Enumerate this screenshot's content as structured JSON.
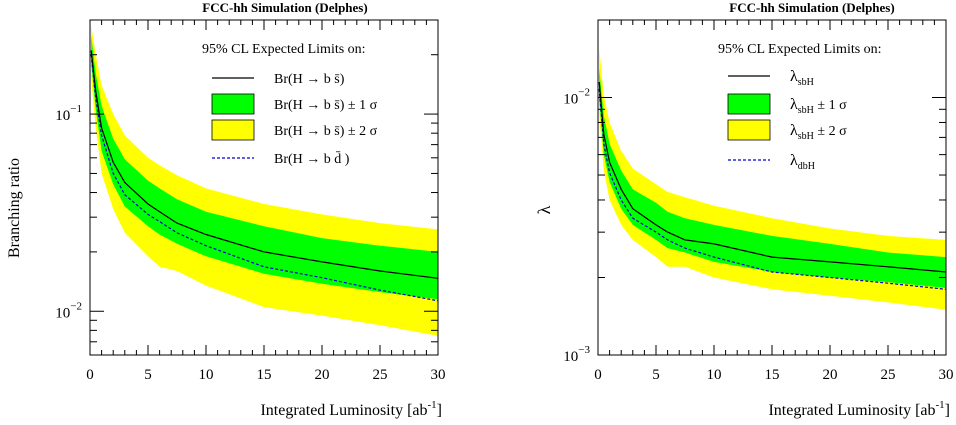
{
  "chart_data": [
    {
      "type": "area",
      "title": "FCC-hh Simulation (Delphes)",
      "xlabel": "Integrated Luminosity [ab",
      "xlabel_sup": "-1",
      "xlabel_close": "]",
      "ylabel": "Branching ratio",
      "xlim": [
        0,
        30
      ],
      "ylim": [
        0.006,
        0.3
      ],
      "yscale": "log",
      "x_ticks": [
        0,
        5,
        10,
        15,
        20,
        25,
        30
      ],
      "x_tick_labels": [
        "0",
        "5",
        "10",
        "15",
        "20",
        "25",
        "30"
      ],
      "y_ticks": [
        0.01,
        0.1
      ],
      "y_tick_labels": [
        {
          "base": "10",
          "exp": "-2"
        },
        {
          "base": "10",
          "exp": "-1"
        }
      ],
      "legend_header": "95% CL Expected Limits on:",
      "legend_position": "top-right",
      "legend": [
        {
          "label": "Br(H  → b  s̄)",
          "style": "line",
          "color": "#000000"
        },
        {
          "label": "Br(H  → b  s̄)  ± 1  σ",
          "style": "fill",
          "color": "#00ff00"
        },
        {
          "label": "Br(H  → b  s̄)  ± 2  σ",
          "style": "fill",
          "color": "#ffff00"
        },
        {
          "label": "Br(H  → b  d̄ )",
          "style": "dash",
          "color": "#0000cc"
        }
      ],
      "x": [
        0.1,
        0.5,
        1,
        2,
        3,
        5,
        6,
        7.5,
        10,
        15,
        20,
        25,
        30
      ],
      "series": [
        {
          "name": "Br(H  → b  s̄)",
          "role": "median",
          "values": [
            0.21,
            0.13,
            0.085,
            0.057,
            0.045,
            0.035,
            0.032,
            0.028,
            0.0245,
            0.02,
            0.0178,
            0.016,
            0.0147
          ]
        },
        {
          "name": "Br(H  → b  s̄)  ± 1  σ",
          "role": "band1",
          "lower": [
            0.18,
            0.105,
            0.065,
            0.044,
            0.034,
            0.027,
            0.0245,
            0.022,
            0.019,
            0.0155,
            0.0138,
            0.0125,
            0.0115
          ],
          "upper": [
            0.25,
            0.16,
            0.11,
            0.075,
            0.059,
            0.046,
            0.042,
            0.037,
            0.032,
            0.027,
            0.0235,
            0.0215,
            0.02
          ]
        },
        {
          "name": "Br(H  → b  s̄)  ± 2  σ",
          "role": "band2",
          "lower": [
            0.15,
            0.085,
            0.05,
            0.033,
            0.025,
            0.019,
            0.0168,
            0.016,
            0.0135,
            0.0105,
            0.0095,
            0.0085,
            0.0075
          ],
          "upper": [
            0.28,
            0.2,
            0.14,
            0.1,
            0.078,
            0.06,
            0.055,
            0.049,
            0.042,
            0.035,
            0.031,
            0.028,
            0.026
          ]
        },
        {
          "name": "Br(H  → b  d̄ )",
          "role": "dashed",
          "values": [
            0.2,
            0.12,
            0.078,
            0.05,
            0.039,
            0.031,
            0.0285,
            0.025,
            0.0215,
            0.0168,
            0.0148,
            0.0128,
            0.0113
          ]
        }
      ]
    },
    {
      "type": "area",
      "title": "FCC-hh Simulation (Delphes)",
      "xlabel": "Integrated Luminosity [ab",
      "xlabel_sup": "-1",
      "xlabel_close": "]",
      "ylabel": "λ",
      "xlim": [
        0,
        30
      ],
      "ylim": [
        0.001,
        0.02
      ],
      "yscale": "log",
      "x_ticks": [
        0,
        5,
        10,
        15,
        20,
        25,
        30
      ],
      "x_tick_labels": [
        "0",
        "5",
        "10",
        "15",
        "20",
        "25",
        "30"
      ],
      "y_ticks": [
        0.001,
        0.01
      ],
      "y_tick_labels": [
        {
          "base": "10",
          "exp": "-3"
        },
        {
          "base": "10",
          "exp": "-2"
        }
      ],
      "legend_header": "95% CL Expected Limits on:",
      "legend_position": "top-right",
      "legend": [
        {
          "label": "λ",
          "sub": "sbH",
          "suffix": "",
          "style": "line",
          "color": "#000000"
        },
        {
          "label": "λ",
          "sub": "sbH",
          "suffix": "  ± 1  σ",
          "style": "fill",
          "color": "#00ff00"
        },
        {
          "label": "λ",
          "sub": "sbH",
          "suffix": "  ± 2  σ",
          "style": "fill",
          "color": "#ffff00"
        },
        {
          "label": "λ",
          "sub": "dbH",
          "suffix": "",
          "style": "dash",
          "color": "#0000cc"
        }
      ],
      "x": [
        0.1,
        0.5,
        1,
        2,
        3,
        5,
        6,
        7.5,
        10,
        15,
        20,
        25,
        30
      ],
      "series": [
        {
          "name": "λsbH",
          "role": "median",
          "values": [
            0.0115,
            0.0072,
            0.0056,
            0.0044,
            0.0037,
            0.0032,
            0.003,
            0.0028,
            0.0027,
            0.0024,
            0.0023,
            0.0022,
            0.0021
          ]
        },
        {
          "name": "λsbH ± 1 σ",
          "role": "band1",
          "lower": [
            0.0098,
            0.006,
            0.0047,
            0.0037,
            0.0032,
            0.0028,
            0.0026,
            0.0025,
            0.0023,
            0.0021,
            0.002,
            0.00192,
            0.00182
          ],
          "upper": [
            0.013,
            0.0085,
            0.0066,
            0.0052,
            0.0044,
            0.0039,
            0.0036,
            0.0034,
            0.0032,
            0.0029,
            0.0027,
            0.0025,
            0.0024
          ]
        },
        {
          "name": "λsbH ± 2 σ",
          "role": "band2",
          "lower": [
            0.0085,
            0.0052,
            0.004,
            0.0032,
            0.0028,
            0.0024,
            0.0022,
            0.0022,
            0.002,
            0.0018,
            0.0017,
            0.0016,
            0.0015
          ],
          "upper": [
            0.0155,
            0.0102,
            0.008,
            0.0062,
            0.0053,
            0.0046,
            0.0043,
            0.0041,
            0.0038,
            0.0034,
            0.0031,
            0.0029,
            0.0028
          ]
        },
        {
          "name": "λdbH",
          "role": "dashed",
          "values": [
            0.0108,
            0.0066,
            0.0051,
            0.004,
            0.0034,
            0.003,
            0.0028,
            0.0026,
            0.0024,
            0.0021,
            0.002,
            0.0019,
            0.0018
          ]
        }
      ]
    }
  ]
}
